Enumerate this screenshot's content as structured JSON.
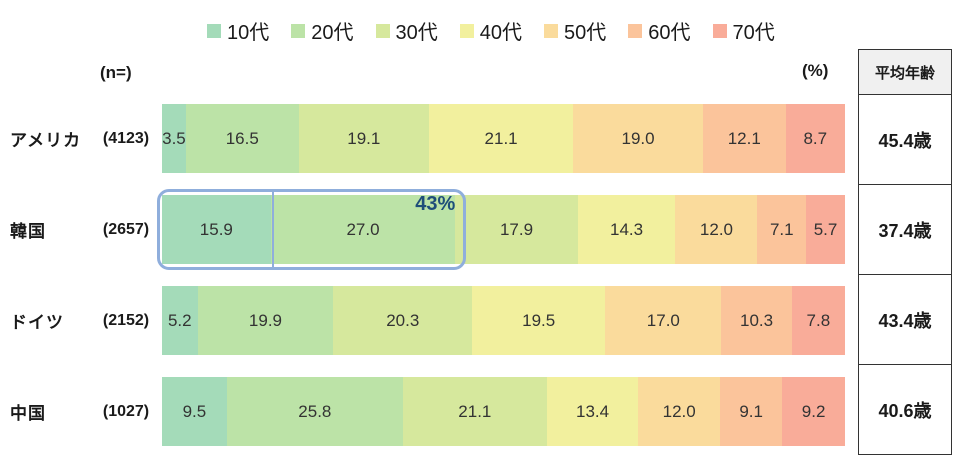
{
  "chart_data": {
    "type": "bar",
    "stacked": true,
    "orientation": "horizontal",
    "title": "",
    "n_label": "(n=)",
    "unit_label": "(%)",
    "legend_position": "top",
    "legend": [
      {
        "label": "10代",
        "color": "#A4DBB9"
      },
      {
        "label": "20代",
        "color": "#BCE3A7"
      },
      {
        "label": "30代",
        "color": "#D6E89D"
      },
      {
        "label": "40代",
        "color": "#F2F09E"
      },
      {
        "label": "50代",
        "color": "#FADB9C"
      },
      {
        "label": "60代",
        "color": "#FBC49B"
      },
      {
        "label": "70代",
        "color": "#F9AC99"
      }
    ],
    "rows": [
      {
        "country": "アメリカ",
        "n": "(4123)",
        "values": [
          3.5,
          16.5,
          19.1,
          21.1,
          19.0,
          12.1,
          8.7
        ],
        "avg_age": "45.4歳"
      },
      {
        "country": "韓国",
        "n": "(2657)",
        "values": [
          15.9,
          27.0,
          17.9,
          14.3,
          12.0,
          7.1,
          5.7
        ],
        "avg_age": "37.4歳"
      },
      {
        "country": "ドイツ",
        "n": "(2152)",
        "values": [
          5.2,
          19.9,
          20.3,
          19.5,
          17.0,
          10.3,
          7.8
        ],
        "avg_age": "43.4歳"
      },
      {
        "country": "中国",
        "n": "(1027)",
        "values": [
          9.5,
          25.8,
          21.1,
          13.4,
          12.0,
          9.1,
          9.2
        ],
        "avg_age": "40.6歳"
      }
    ],
    "highlight": {
      "row": 1,
      "segments": [
        0,
        1
      ],
      "label": "43%",
      "border_color": "#8FAEDC",
      "label_color": "#1F4E79"
    },
    "table": {
      "header": "平均年齢",
      "values": [
        "45.4歳",
        "37.4歳",
        "43.4歳",
        "40.6歳"
      ]
    }
  }
}
